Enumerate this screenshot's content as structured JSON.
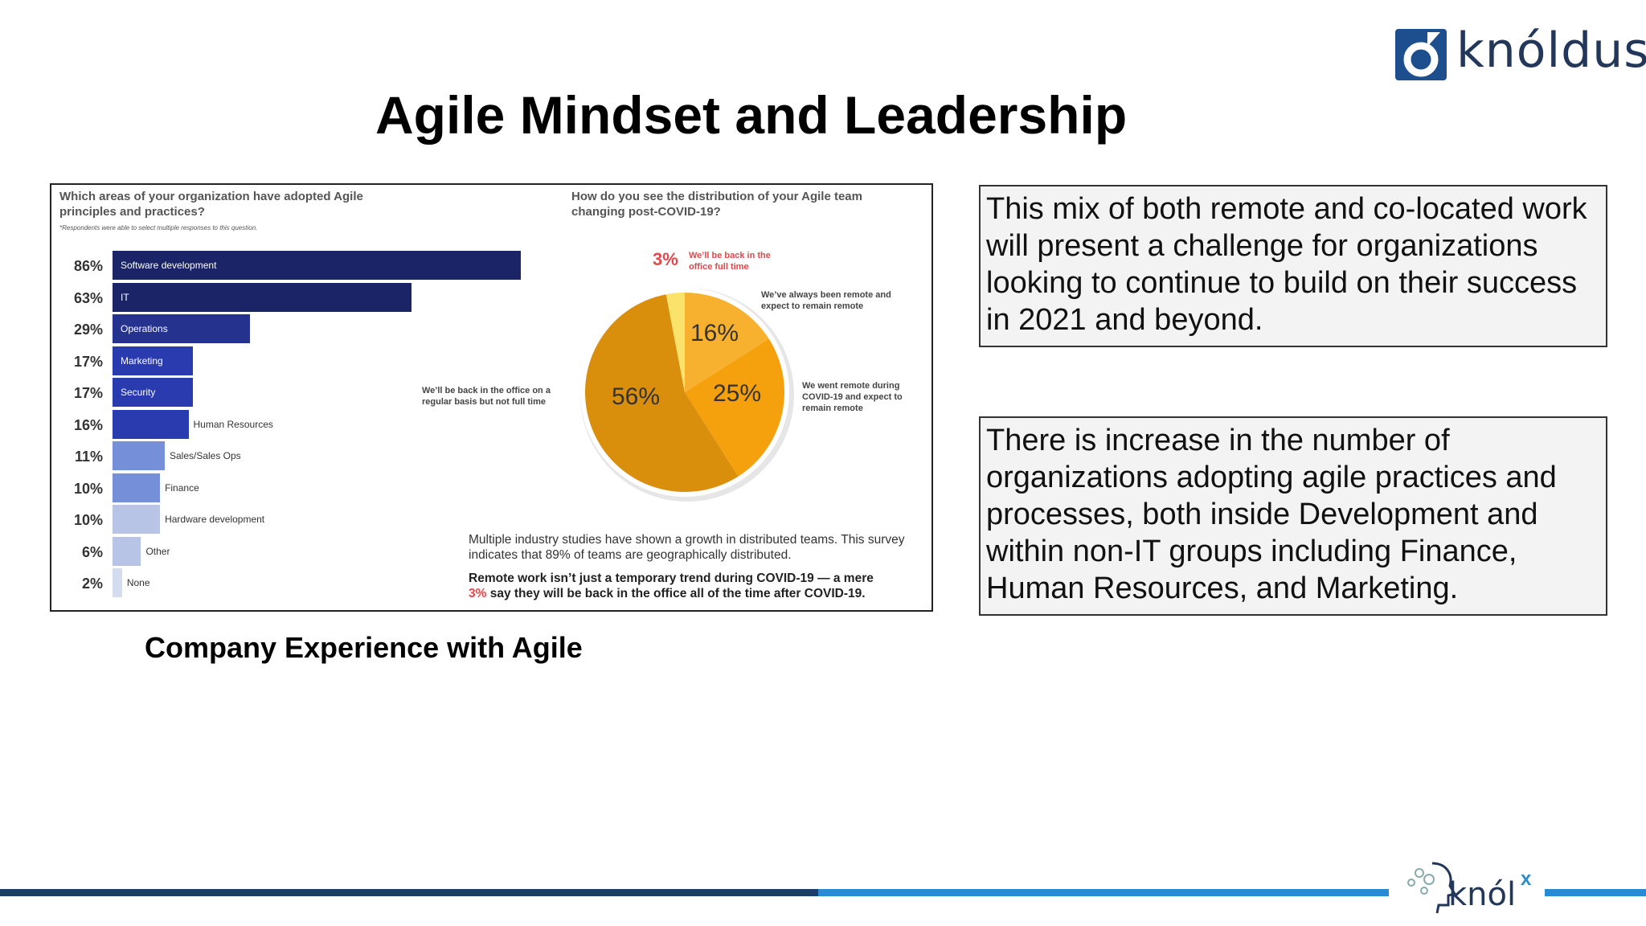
{
  "header": {
    "logo_text": "knóldus",
    "title": "Agile Mindset and Leadership"
  },
  "figure": {
    "q1": "Which areas of your organization have adopted Agile principles and practices?",
    "q1_note": "*Respondents were able to select multiple responses to this question.",
    "q2": "How do you see the distribution of your Agile team changing post-COVID-19?",
    "study_text": "Multiple industry studies have shown a growth in distributed teams. This survey indicates that 89% of teams are geographically distributed.",
    "remote_text_a": "Remote work isn’t just a temporary trend during COVID-19 — a mere",
    "remote_text_pct": "3%",
    "remote_text_b": "say they will be back in the office all of the time after COVID-19."
  },
  "chart_data": [
    {
      "type": "bar",
      "orientation": "horizontal",
      "title": "Which areas of your organization have adopted Agile principles and practices?",
      "categories": [
        "Software development",
        "IT",
        "Operations",
        "Marketing",
        "Security",
        "Human Resources",
        "Sales/Sales Ops",
        "Finance",
        "Hardware development",
        "Other",
        "None"
      ],
      "values": [
        86,
        63,
        29,
        17,
        17,
        16,
        11,
        10,
        10,
        6,
        2
      ],
      "value_labels": [
        "86%",
        "63%",
        "29%",
        "17%",
        "17%",
        "16%",
        "11%",
        "10%",
        "10%",
        "6%",
        "2%"
      ],
      "colors": [
        "#1b2466",
        "#1b2466",
        "#25338f",
        "#2a3bb0",
        "#2a3bb0",
        "#2a3bb0",
        "#7590d8",
        "#7590d8",
        "#b7c4e6",
        "#b7c4e6",
        "#d4dcf0"
      ],
      "xlim": [
        0,
        100
      ]
    },
    {
      "type": "pie",
      "title": "How do you see the distribution of your Agile team changing post-COVID-19?",
      "slices": [
        {
          "label": "We’ve always been remote and expect to remain remote",
          "value": 16,
          "value_label": "16%",
          "color": "#f7b12e"
        },
        {
          "label": "We went remote during COVID-19 and expect to remain remote",
          "value": 25,
          "value_label": "25%",
          "color": "#f5a00d"
        },
        {
          "label": "We’ll be back in the office on a regular basis but not full time",
          "value": 56,
          "value_label": "56%",
          "color": "#d98e0c"
        },
        {
          "label": "We’ll be back in the office full time",
          "value": 3,
          "value_label": "3%",
          "color": "#fbe26b"
        }
      ]
    }
  ],
  "caption": "Company Experience with Agile",
  "textboxes": {
    "box1": "This mix of both remote and co-located work will present a challenge for organizations looking to continue to build on their success in 2021 and beyond.",
    "box2": "There is increase in the number of organizations adopting agile practices and processes, both inside Development and within non-IT groups including Finance, Human Resources, and Marketing."
  },
  "footer": {
    "logo_word": "knól",
    "logo_sup": "x"
  }
}
